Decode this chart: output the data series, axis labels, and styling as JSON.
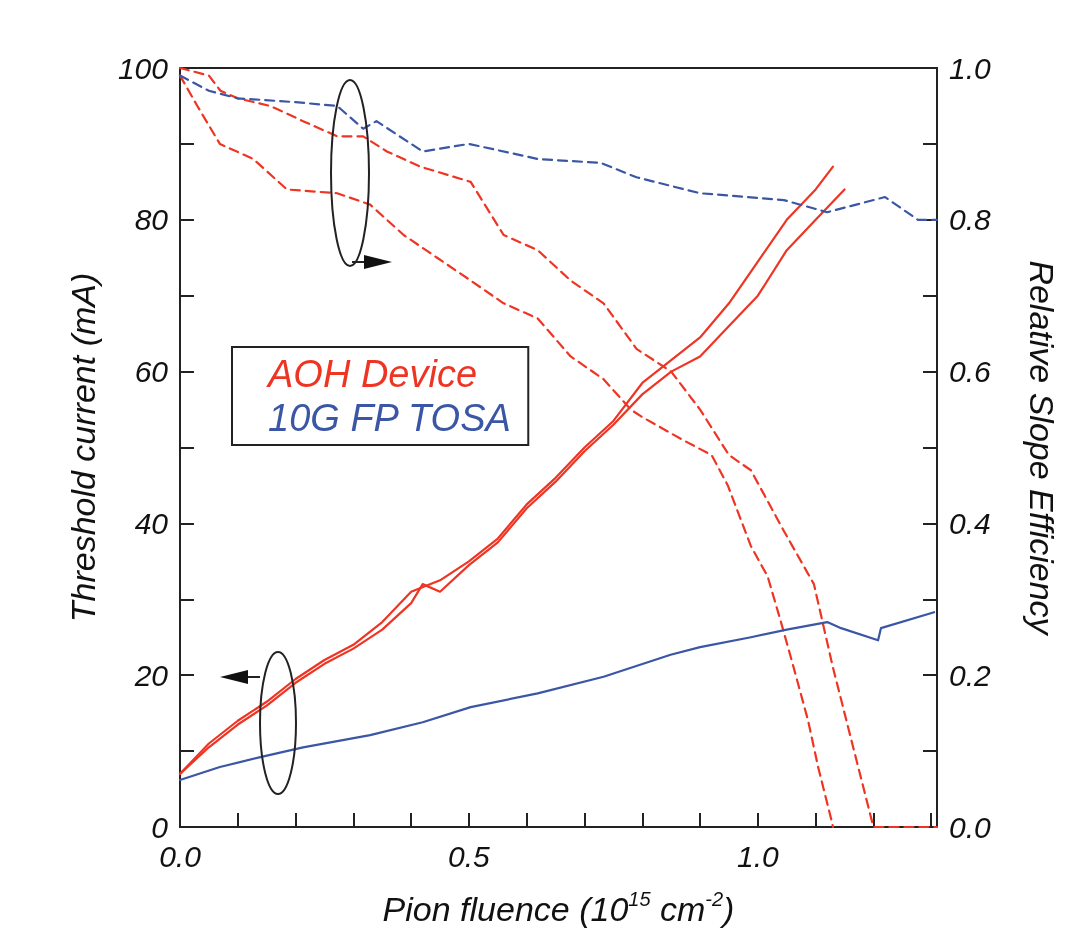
{
  "chart_data": {
    "type": "line",
    "xlabel": "Pion fluence (10$^{15}$ cm$^{-2}$)",
    "ylabel": "Threshold current (mA)",
    "y2label": "Relative Slope Efficiency",
    "xlim": [
      0,
      1.31
    ],
    "ylim": [
      0,
      100
    ],
    "y2lim": [
      0,
      1.0
    ],
    "xticks": [
      {
        "value": 0,
        "label": "0.0"
      },
      {
        "value": 0.1,
        "label": null
      },
      {
        "value": 0.2,
        "label": null
      },
      {
        "value": 0.3,
        "label": null
      },
      {
        "value": 0.4,
        "label": null
      },
      {
        "value": 0.5,
        "label": "0.5"
      },
      {
        "value": 0.6,
        "label": null
      },
      {
        "value": 0.7,
        "label": null
      },
      {
        "value": 0.8,
        "label": null
      },
      {
        "value": 0.9,
        "label": null
      },
      {
        "value": 1.0,
        "label": "1.0"
      },
      {
        "value": 1.1,
        "label": null
      },
      {
        "value": 1.2,
        "label": null
      },
      {
        "value": 1.3,
        "label": null
      }
    ],
    "yticks": [
      0,
      {
        "value": 10,
        "label": null
      },
      20,
      {
        "value": 30,
        "label": null
      },
      40,
      {
        "value": 50,
        "label": null
      },
      60,
      {
        "value": 70,
        "label": null
      },
      80,
      {
        "value": 90,
        "label": null
      },
      100
    ],
    "y2ticks": [
      {
        "value": 0,
        "label": "0.0"
      },
      {
        "value": 0.1,
        "label": null
      },
      0.2,
      {
        "value": 0.3,
        "label": null
      },
      0.4,
      {
        "value": 0.5,
        "label": null
      },
      0.6,
      {
        "value": 0.7,
        "label": null
      },
      0.8,
      {
        "value": 0.9,
        "label": null
      },
      {
        "value": 1.0,
        "label": "1.0"
      }
    ],
    "legend": "left",
    "marker": "none",
    "grid": false,
    "series": [
      {
        "name": "AOH Device",
        "color": "#ee3524",
        "line_style": "solid",
        "x": [
          0,
          0.05,
          0.1,
          0.15,
          0.2,
          0.25,
          0.3,
          0.35,
          0.4,
          0.45,
          0.5,
          0.55,
          0.6,
          0.65,
          0.7,
          0.75,
          0.8,
          0.85,
          0.9,
          0.95,
          1.0,
          1.05,
          1.1,
          1.13
        ],
        "values": [
          7,
          11,
          14,
          16.5,
          19.5,
          22,
          24,
          27,
          31,
          32.5,
          35,
          38,
          42.5,
          46,
          50,
          53.5,
          58.5,
          61.5,
          64.5,
          69,
          74.5,
          80,
          84,
          87
        ]
      },
      {
        "color": "#ee3524",
        "line_style": "solid",
        "x": [
          0,
          0.05,
          0.1,
          0.15,
          0.2,
          0.25,
          0.3,
          0.35,
          0.4,
          0.42,
          0.45,
          0.5,
          0.55,
          0.6,
          0.65,
          0.7,
          0.75,
          0.8,
          0.85,
          0.9,
          0.95,
          1.0,
          1.05,
          1.1,
          1.15
        ],
        "values": [
          7,
          10.5,
          13.5,
          16,
          19,
          21.5,
          23.5,
          26,
          29.5,
          32,
          31,
          34.5,
          37.5,
          42,
          45.5,
          49.5,
          53,
          57,
          60,
          62,
          66,
          70,
          76,
          80,
          84
        ]
      },
      {
        "color": "#ee3524",
        "line_style": "dashed",
        "axis": "y2",
        "x": [
          0,
          0.05,
          0.07,
          0.1,
          0.156,
          0.213,
          0.272,
          0.317,
          0.358,
          0.416,
          0.503,
          0.56,
          0.619,
          0.676,
          0.733,
          0.79,
          0.85,
          0.9,
          0.95,
          0.988,
          1.045,
          1.097,
          1.13,
          1.16,
          1.19,
          1.2,
          1.31
        ],
        "values": [
          1.0,
          0.99,
          0.97,
          0.96,
          0.95,
          0.93,
          0.91,
          0.91,
          0.89,
          0.87,
          0.85,
          0.78,
          0.76,
          0.72,
          0.69,
          0.63,
          0.6,
          0.55,
          0.49,
          0.47,
          0.39,
          0.32,
          0.21,
          0.12,
          0.03,
          0,
          0
        ]
      },
      {
        "color": "#ee3524",
        "line_style": "dashed",
        "axis": "y2",
        "x": [
          0,
          0.03,
          0.069,
          0.127,
          0.185,
          0.272,
          0.329,
          0.387,
          0.445,
          0.503,
          0.56,
          0.619,
          0.676,
          0.733,
          0.78,
          0.8,
          0.87,
          0.92,
          0.948,
          0.988,
          1.017,
          1.04,
          1.062,
          1.087,
          1.104,
          1.127,
          1.13
        ],
        "values": [
          0.99,
          0.95,
          0.9,
          0.88,
          0.84,
          0.835,
          0.82,
          0.78,
          0.75,
          0.72,
          0.69,
          0.67,
          0.62,
          0.59,
          0.55,
          0.54,
          0.51,
          0.49,
          0.45,
          0.37,
          0.33,
          0.27,
          0.21,
          0.14,
          0.08,
          0.01,
          0
        ]
      },
      {
        "name": "10G FP TOSA",
        "color": "#3a56a5",
        "line_style": "solid",
        "x": [
          0,
          0.069,
          0.139,
          0.213,
          0.329,
          0.42,
          0.503,
          0.619,
          0.733,
          0.849,
          0.9,
          0.988,
          1.05,
          1.12,
          1.144,
          1.208,
          1.213,
          1.305
        ],
        "values": [
          6.2,
          7.9,
          9.2,
          10.5,
          12.1,
          13.8,
          15.8,
          17.6,
          19.8,
          22.7,
          23.7,
          25,
          26,
          27,
          26.2,
          24.6,
          26.2,
          28.3
        ]
      },
      {
        "color": "#3a56a5",
        "line_style": "dashed",
        "axis": "y2",
        "x": [
          0,
          0.05,
          0.1,
          0.2,
          0.272,
          0.317,
          0.34,
          0.42,
          0.5,
          0.62,
          0.728,
          0.79,
          0.9,
          1.045,
          1.12,
          1.22,
          1.277,
          1.31
        ],
        "values": [
          0.99,
          0.97,
          0.96,
          0.955,
          0.95,
          0.92,
          0.93,
          0.89,
          0.9,
          0.88,
          0.875,
          0.856,
          0.835,
          0.826,
          0.81,
          0.83,
          0.8,
          0.8
        ]
      }
    ]
  }
}
